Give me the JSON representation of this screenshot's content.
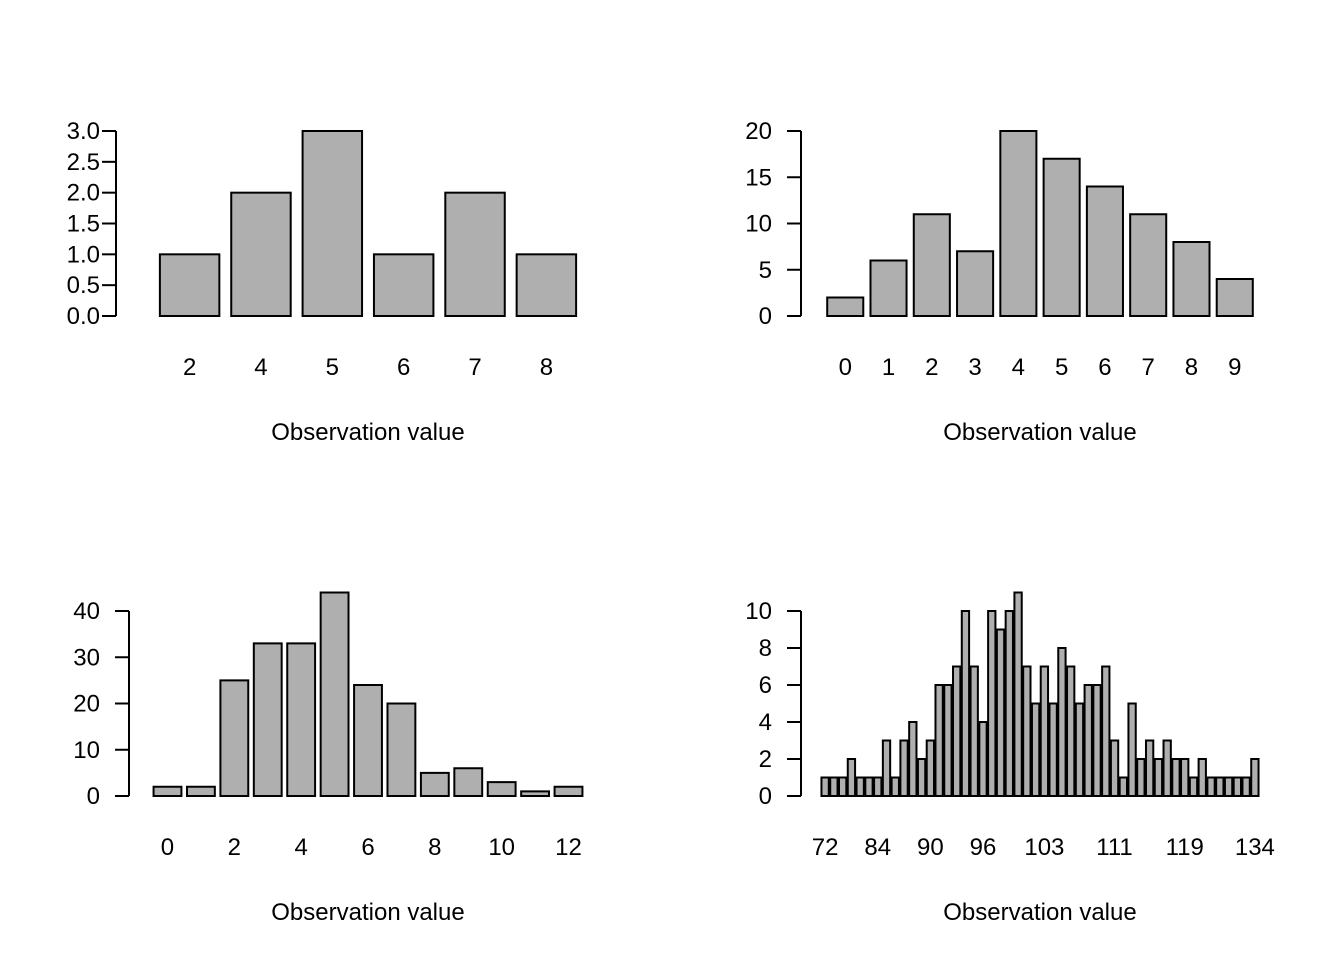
{
  "chart_data": [
    {
      "type": "bar",
      "xlabel": "Observation value",
      "ylabel": "",
      "categories": [
        "2",
        "4",
        "5",
        "6",
        "7",
        "8"
      ],
      "values": [
        1,
        2,
        3,
        1,
        2,
        1
      ],
      "xtick_labels": [
        "2",
        "4",
        "5",
        "6",
        "7",
        "8"
      ],
      "ylim": [
        0,
        3
      ],
      "yticks": [
        "0.0",
        "0.5",
        "1.0",
        "1.5",
        "2.0",
        "2.5",
        "3.0"
      ],
      "grid": false,
      "bar_color": "#afafaf"
    },
    {
      "type": "bar",
      "xlabel": "Observation value",
      "ylabel": "",
      "categories": [
        "0",
        "1",
        "2",
        "3",
        "4",
        "5",
        "6",
        "7",
        "8",
        "9"
      ],
      "values": [
        2,
        6,
        11,
        7,
        20,
        17,
        14,
        11,
        8,
        4
      ],
      "xtick_labels": [
        "0",
        "1",
        "2",
        "3",
        "4",
        "5",
        "6",
        "7",
        "8",
        "9"
      ],
      "ylim": [
        0,
        20
      ],
      "yticks": [
        "0",
        "5",
        "10",
        "15",
        "20"
      ],
      "grid": false,
      "bar_color": "#afafaf"
    },
    {
      "type": "bar",
      "xlabel": "Observation value",
      "ylabel": "",
      "categories": [
        "0",
        "1",
        "2",
        "3",
        "4",
        "5",
        "6",
        "7",
        "8",
        "9",
        "10",
        "11",
        "12"
      ],
      "values": [
        2,
        2,
        25,
        33,
        33,
        44,
        24,
        20,
        5,
        6,
        3,
        1,
        2
      ],
      "xtick_labels": [
        "0",
        "2",
        "4",
        "6",
        "8",
        "10",
        "12"
      ],
      "ylim": [
        0,
        40
      ],
      "yticks": [
        "0",
        "10",
        "20",
        "30",
        "40"
      ],
      "grid": false,
      "bar_color": "#afafaf"
    },
    {
      "type": "bar",
      "xlabel": "Observation value",
      "ylabel": "",
      "values": [
        1,
        1,
        1,
        2,
        1,
        1,
        1,
        3,
        1,
        3,
        4,
        2,
        3,
        6,
        6,
        7,
        10,
        7,
        4,
        10,
        9,
        10,
        11,
        7,
        5,
        7,
        5,
        8,
        7,
        5,
        6,
        6,
        7,
        3,
        1,
        5,
        2,
        3,
        2,
        3,
        2,
        2,
        1,
        2,
        1,
        1,
        1,
        1,
        1,
        2
      ],
      "xtick_labels": [
        "72",
        "84",
        "90",
        "96",
        "103",
        "111",
        "119",
        "134"
      ],
      "ylim": [
        0,
        10
      ],
      "yticks": [
        "0",
        "2",
        "4",
        "6",
        "8",
        "10"
      ],
      "grid": false,
      "bar_color": "#afafaf"
    }
  ]
}
